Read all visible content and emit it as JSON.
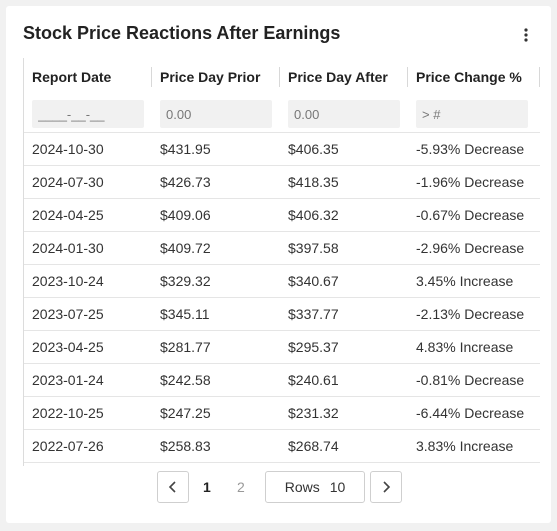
{
  "header": {
    "title": "Stock Price Reactions After Earnings"
  },
  "columns": [
    "Report Date",
    "Price Day Prior",
    "Price Day After",
    "Price Change %"
  ],
  "filters": [
    "____-__-__",
    "0.00",
    "0.00",
    "> #"
  ],
  "rows": [
    {
      "date": "2024-10-30",
      "prior": "$431.95",
      "after": "$406.35",
      "change": "-5.93% Decrease",
      "dir": "neg"
    },
    {
      "date": "2024-07-30",
      "prior": "$426.73",
      "after": "$418.35",
      "change": "-1.96% Decrease",
      "dir": "neg"
    },
    {
      "date": "2024-04-25",
      "prior": "$409.06",
      "after": "$406.32",
      "change": "-0.67% Decrease",
      "dir": "neg"
    },
    {
      "date": "2024-01-30",
      "prior": "$409.72",
      "after": "$397.58",
      "change": "-2.96% Decrease",
      "dir": "neg"
    },
    {
      "date": "2023-10-24",
      "prior": "$329.32",
      "after": "$340.67",
      "change": "3.45% Increase",
      "dir": "pos"
    },
    {
      "date": "2023-07-25",
      "prior": "$345.11",
      "after": "$337.77",
      "change": "-2.13% Decrease",
      "dir": "neg"
    },
    {
      "date": "2023-04-25",
      "prior": "$281.77",
      "after": "$295.37",
      "change": "4.83% Increase",
      "dir": "pos"
    },
    {
      "date": "2023-01-24",
      "prior": "$242.58",
      "after": "$240.61",
      "change": "-0.81% Decrease",
      "dir": "neg"
    },
    {
      "date": "2022-10-25",
      "prior": "$247.25",
      "after": "$231.32",
      "change": "-6.44% Decrease",
      "dir": "neg"
    },
    {
      "date": "2022-07-26",
      "prior": "$258.83",
      "after": "$268.74",
      "change": "3.83% Increase",
      "dir": "pos"
    }
  ],
  "pagination": {
    "pages": [
      "1",
      "2"
    ],
    "current": "1",
    "rows_label": "Rows",
    "rows_value": "10"
  },
  "colors": {
    "increase": "#1d7d1d",
    "decrease": "#cc2020"
  },
  "icons": {
    "menu": "vertical-dots-icon",
    "prev": "chevron-left-icon",
    "next": "chevron-right-icon"
  }
}
